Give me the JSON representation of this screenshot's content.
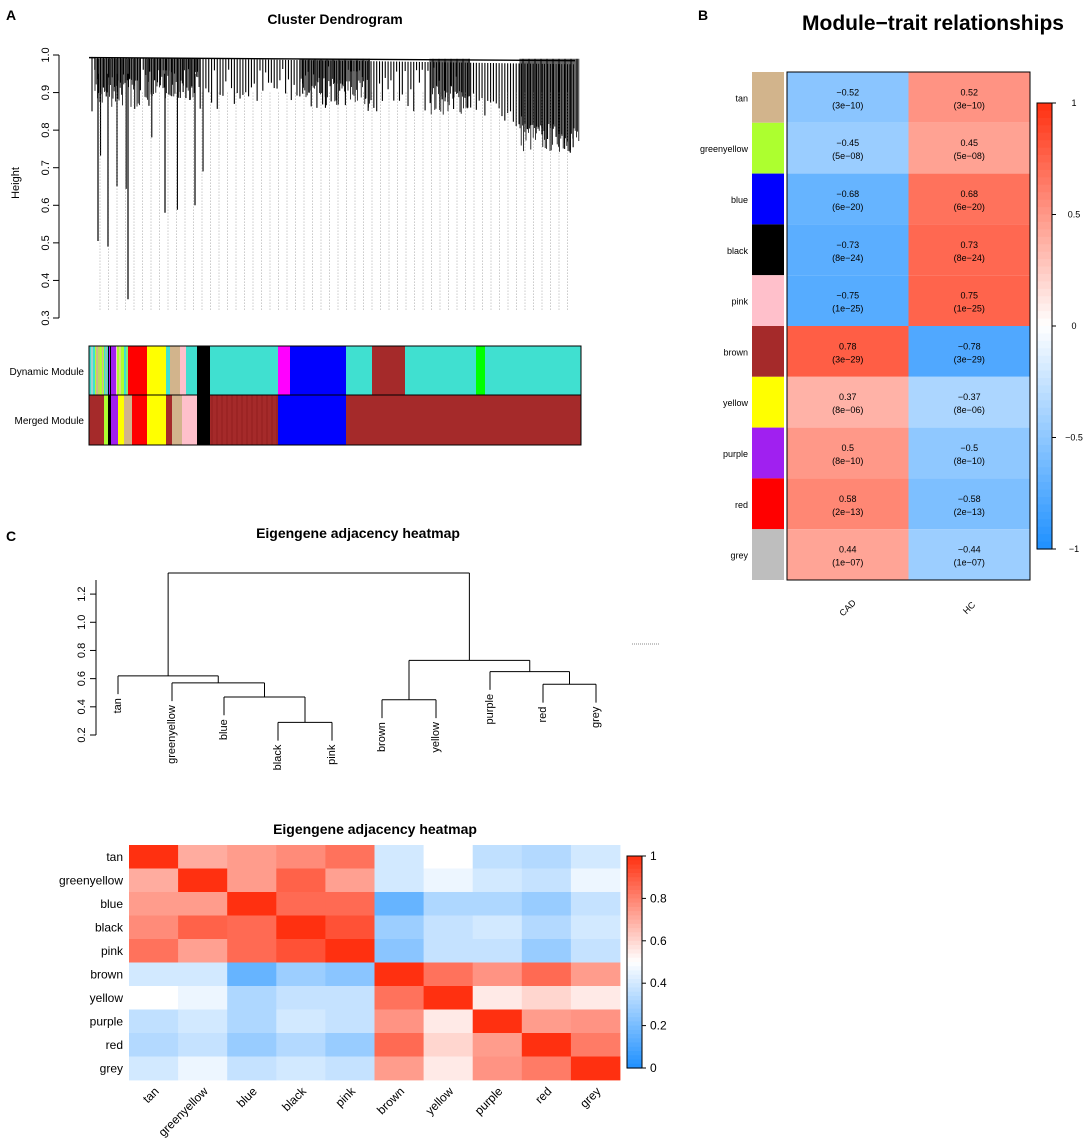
{
  "panels": {
    "a": {
      "letter": "A",
      "title": "Cluster Dendrogram",
      "ylabel": "Height",
      "yticks": [
        "0.3",
        "0.4",
        "0.5",
        "0.6",
        "0.7",
        "0.8",
        "0.9",
        "1.0"
      ],
      "rows": [
        "Dynamic Module",
        "Merged Module"
      ],
      "colors": {
        "turquoise": "#40E0D0",
        "blue": "#0000FF",
        "brown": "#A52A2A",
        "yellow": "#FFFF00",
        "red": "#FF0000",
        "black": "#000000",
        "pink": "#FFC0CB",
        "magenta": "#FF00FF",
        "green": "#00FF00",
        "purple": "#A020F0",
        "greenyellow": "#ADFF2F",
        "tan": "#D2B48C"
      }
    },
    "b": {
      "letter": "B",
      "title": "Module−trait relationships",
      "colorbar_ticks": [
        "1",
        "0.5",
        "0",
        "−0.5",
        "−1"
      ]
    },
    "c": {
      "letter": "C",
      "dendro_title": "Eigengene adjacency heatmap",
      "dendro_yticks": [
        "0.2",
        "0.4",
        "0.6",
        "0.8",
        "1.0",
        "1.2"
      ],
      "heatmap_title": "Eigengene adjacency heatmap",
      "colorbar_ticks": [
        "0",
        "0.2",
        "0.4",
        "0.6",
        "0.8",
        "1"
      ]
    }
  },
  "chart_data": [
    {
      "id": "cluster-dendrogram",
      "type": "dendrogram",
      "title": "Cluster Dendrogram",
      "ylabel": "Height",
      "ylim": [
        0.3,
        1.0
      ],
      "module_rows": [
        "Dynamic Module",
        "Merged Module"
      ]
    },
    {
      "id": "module-trait",
      "type": "heatmap",
      "title": "Module−trait relationships",
      "rows": [
        "tan",
        "greenyellow",
        "blue",
        "black",
        "pink",
        "brown",
        "yellow",
        "purple",
        "red",
        "grey"
      ],
      "row_colors": [
        "#D2B48C",
        "#ADFF2F",
        "#0000FF",
        "#000000",
        "#FFC0CB",
        "#A52A2A",
        "#FFFF00",
        "#A020F0",
        "#FF0000",
        "#BEBEBE"
      ],
      "columns": [
        "CAD",
        "HC"
      ],
      "correlations": [
        [
          -0.52,
          0.52
        ],
        [
          -0.45,
          0.45
        ],
        [
          -0.68,
          0.68
        ],
        [
          -0.73,
          0.73
        ],
        [
          -0.75,
          0.75
        ],
        [
          0.78,
          -0.78
        ],
        [
          0.37,
          -0.37
        ],
        [
          0.5,
          -0.5
        ],
        [
          0.58,
          -0.58
        ],
        [
          0.44,
          -0.44
        ]
      ],
      "corr_labels": [
        [
          "−0.52",
          "0.52"
        ],
        [
          "−0.45",
          "0.45"
        ],
        [
          "−0.68",
          "0.68"
        ],
        [
          "−0.73",
          "0.73"
        ],
        [
          "−0.75",
          "0.75"
        ],
        [
          "0.78",
          "−0.78"
        ],
        [
          "0.37",
          "−0.37"
        ],
        [
          "0.5",
          "−0.5"
        ],
        [
          "0.58",
          "−0.58"
        ],
        [
          "0.44",
          "−0.44"
        ]
      ],
      "pvalue_labels": [
        [
          "(3e−10)",
          "(3e−10)"
        ],
        [
          "(5e−08)",
          "(5e−08)"
        ],
        [
          "(6e−20)",
          "(6e−20)"
        ],
        [
          "(8e−24)",
          "(8e−24)"
        ],
        [
          "(1e−25)",
          "(1e−25)"
        ],
        [
          "(3e−29)",
          "(3e−29)"
        ],
        [
          "(8e−06)",
          "(8e−06)"
        ],
        [
          "(8e−10)",
          "(8e−10)"
        ],
        [
          "(2e−13)",
          "(2e−13)"
        ],
        [
          "(1e−07)",
          "(1e−07)"
        ]
      ],
      "zlim": [
        -1,
        1
      ]
    },
    {
      "id": "eigengene-dendrogram",
      "type": "dendrogram",
      "title": "Eigengene adjacency heatmap",
      "leaves": [
        "tan",
        "greenyellow",
        "blue",
        "black",
        "pink",
        "brown",
        "yellow",
        "purple",
        "red",
        "grey"
      ],
      "ylim": [
        0.2,
        1.35
      ],
      "merges": [
        {
          "a": "black",
          "b": "pink",
          "h": 0.29
        },
        {
          "a": "blue",
          "b": "black+pink",
          "h": 0.47
        },
        {
          "a": "greenyellow",
          "b": "blue+black+pink",
          "h": 0.57
        },
        {
          "a": "tan",
          "b": "greenyellow+blue+black+pink",
          "h": 0.62
        },
        {
          "a": "brown",
          "b": "yellow",
          "h": 0.45
        },
        {
          "a": "red",
          "b": "grey",
          "h": 0.56
        },
        {
          "a": "purple",
          "b": "red+grey",
          "h": 0.65
        },
        {
          "a": "brown+yellow",
          "b": "purple+red+grey",
          "h": 0.73
        },
        {
          "a": "left",
          "b": "right",
          "h": 1.35
        }
      ]
    },
    {
      "id": "eigengene-heatmap",
      "type": "heatmap",
      "title": "Eigengene adjacency heatmap",
      "labels": [
        "tan",
        "greenyellow",
        "blue",
        "black",
        "pink",
        "brown",
        "yellow",
        "purple",
        "red",
        "grey"
      ],
      "zlim": [
        0,
        1
      ],
      "matrix": [
        [
          1.0,
          0.7,
          0.74,
          0.78,
          0.84,
          0.4,
          0.5,
          0.36,
          0.33,
          0.4
        ],
        [
          0.7,
          1.0,
          0.74,
          0.88,
          0.73,
          0.4,
          0.46,
          0.4,
          0.37,
          0.46
        ],
        [
          0.74,
          0.74,
          1.0,
          0.86,
          0.86,
          0.16,
          0.32,
          0.32,
          0.27,
          0.37
        ],
        [
          0.78,
          0.88,
          0.86,
          1.0,
          0.92,
          0.28,
          0.37,
          0.4,
          0.33,
          0.4
        ],
        [
          0.84,
          0.73,
          0.86,
          0.92,
          1.0,
          0.24,
          0.37,
          0.37,
          0.27,
          0.37
        ],
        [
          0.4,
          0.4,
          0.16,
          0.28,
          0.24,
          1.0,
          0.84,
          0.76,
          0.86,
          0.74
        ],
        [
          0.5,
          0.46,
          0.32,
          0.37,
          0.37,
          0.84,
          1.0,
          0.55,
          0.6,
          0.55
        ],
        [
          0.36,
          0.4,
          0.32,
          0.4,
          0.37,
          0.76,
          0.55,
          1.0,
          0.74,
          0.76
        ],
        [
          0.33,
          0.37,
          0.27,
          0.33,
          0.27,
          0.86,
          0.6,
          0.74,
          1.0,
          0.82
        ],
        [
          0.4,
          0.46,
          0.37,
          0.4,
          0.37,
          0.74,
          0.55,
          0.76,
          0.82,
          1.0
        ]
      ]
    }
  ]
}
